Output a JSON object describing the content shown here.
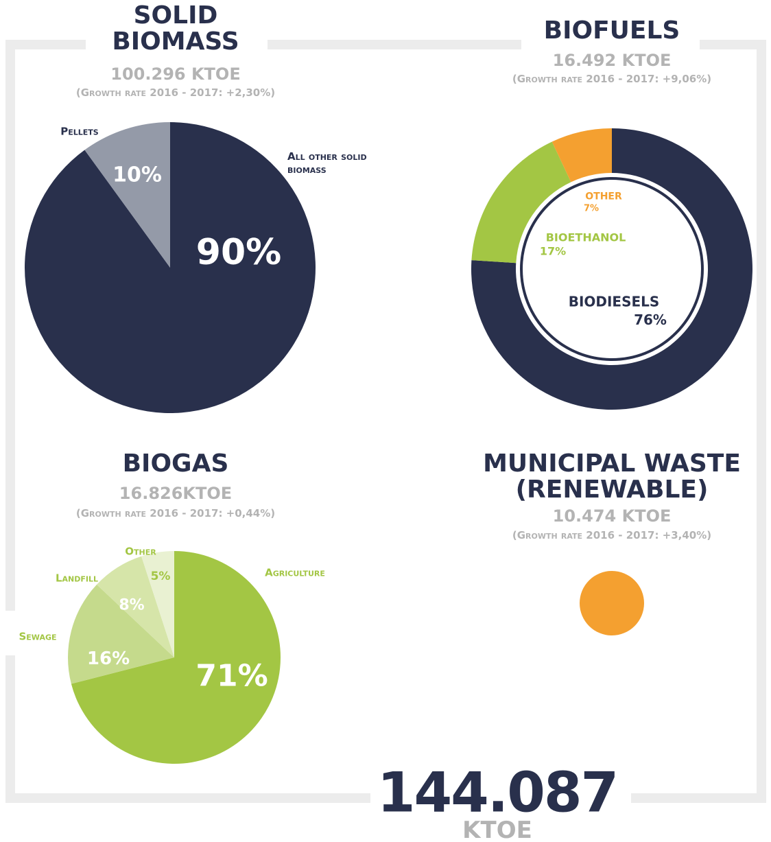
{
  "chart_data": [
    {
      "type": "pie",
      "title": "SOLID BIOMASS",
      "subtitle": "100.296 KTOE",
      "note": "(Growth rate 2016 - 2017: +2,30%)",
      "categories": [
        "All other solid biomass",
        "Pellets"
      ],
      "values": [
        90,
        10
      ],
      "value_labels": [
        "90%",
        "10%"
      ],
      "colors": [
        "#29304c",
        "#949aa8"
      ]
    },
    {
      "type": "donut",
      "title": "BIOFUELS",
      "subtitle": "16.492 KTOE",
      "note": "(Growth rate 2016 - 2017: +9,06%)",
      "categories": [
        "BIODIESELS",
        "BIOETHANOL",
        "OTHER"
      ],
      "values": [
        76,
        17,
        7
      ],
      "value_labels": [
        "76%",
        "17%",
        "7%"
      ],
      "colors": [
        "#29304c",
        "#a3c644",
        "#f4a030"
      ]
    },
    {
      "type": "pie",
      "title": "BIOGAS",
      "subtitle": "16.826KTOE",
      "note": "(Growth rate 2016 - 2017: +0,44%)",
      "categories": [
        "Agriculture",
        "Sewage",
        "Landfill",
        "Other"
      ],
      "values": [
        71,
        16,
        8,
        5
      ],
      "value_labels": [
        "71%",
        "16%",
        "8%",
        "5%"
      ],
      "colors": [
        "#a3c644",
        "#c5da8c",
        "#d6e5a9",
        "#e9f1d2"
      ]
    },
    {
      "type": "circle",
      "title": "MUNICIPAL WASTE (RENEWABLE)",
      "subtitle": "10.474 KTOE",
      "note": "(Growth rate 2016 - 2017: +3,40%)",
      "color": "#f4a030"
    }
  ],
  "total": {
    "value": "144.087",
    "unit": "KTOE"
  }
}
